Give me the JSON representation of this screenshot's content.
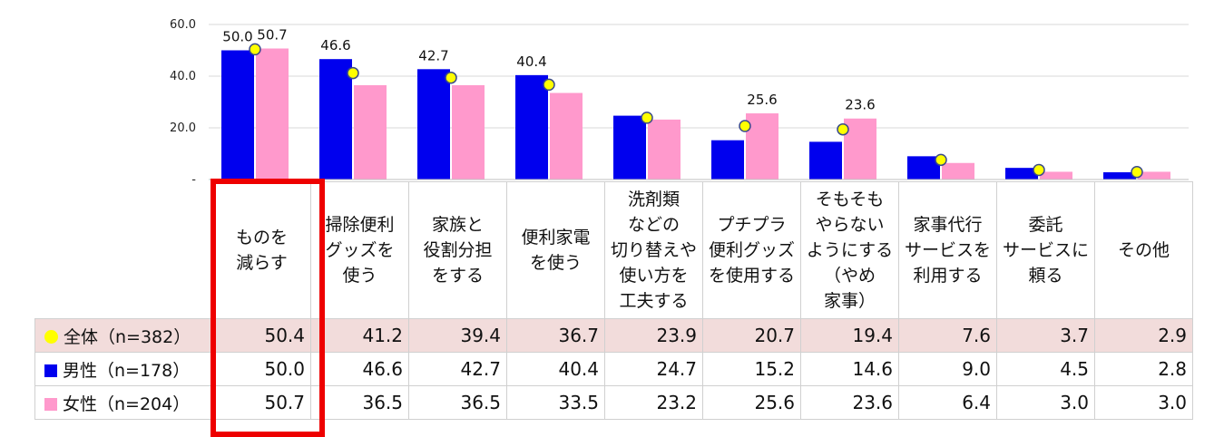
{
  "chart_data": {
    "type": "bar",
    "title": "",
    "xlabel": "",
    "ylabel": "",
    "ylim": [
      0,
      60
    ],
    "yticks": [
      {
        "value": 60,
        "label": "60.0"
      },
      {
        "value": 40,
        "label": "40.0"
      },
      {
        "value": 20,
        "label": "20.0"
      },
      {
        "value": 0,
        "label": "-"
      }
    ],
    "categories": [
      "ものを\n減らす",
      "掃除便利\nグッズを\n使う",
      "家族と\n役割分担\nをする",
      "便利家電\nを使う",
      "洗剤類\nなどの\n切り替えや\n使い方を\n工夫する",
      "プチプラ\n便利グッズ\nを使用する",
      "そもそも\nやらない\nようにする\n（やめ\n家事）",
      "家事代行\nサービスを\n利用する",
      "委託\nサービスに\n頼る",
      "その他"
    ],
    "series": [
      {
        "name": "全体（n=382）",
        "marker": "dot",
        "color": "#ffff00",
        "values": [
          50.4,
          41.2,
          39.4,
          36.7,
          23.9,
          20.7,
          19.4,
          7.6,
          3.7,
          2.9
        ]
      },
      {
        "name": "男性（n=178）",
        "marker": "bar",
        "color": "#0000ee",
        "values": [
          50.0,
          46.6,
          42.7,
          40.4,
          24.7,
          15.2,
          14.6,
          9.0,
          4.5,
          2.8
        ]
      },
      {
        "name": "女性（n=204）",
        "marker": "bar",
        "color": "#ff99cc",
        "values": [
          50.7,
          36.5,
          36.5,
          33.5,
          23.2,
          25.6,
          23.6,
          6.4,
          3.0,
          3.0
        ]
      }
    ],
    "data_labels": [
      {
        "category_index": 0,
        "series": "男性（n=178）",
        "text": "50.0"
      },
      {
        "category_index": 0,
        "series": "女性（n=204）",
        "text": "50.7"
      },
      {
        "category_index": 1,
        "series": "男性（n=178）",
        "text": "46.6"
      },
      {
        "category_index": 2,
        "series": "男性（n=178）",
        "text": "42.7"
      },
      {
        "category_index": 3,
        "series": "男性（n=178）",
        "text": "40.4"
      },
      {
        "category_index": 5,
        "series": "女性（n=204）",
        "text": "25.6"
      },
      {
        "category_index": 6,
        "series": "女性（n=204）",
        "text": "23.6"
      }
    ],
    "table_values": [
      [
        "50.4",
        "41.2",
        "39.4",
        "36.7",
        "23.9",
        "20.7",
        "19.4",
        "7.6",
        "3.7",
        "2.9"
      ],
      [
        "50.0",
        "46.6",
        "42.7",
        "40.4",
        "24.7",
        "15.2",
        "14.6",
        "9.0",
        "4.5",
        "2.8"
      ],
      [
        "50.7",
        "36.5",
        "36.5",
        "33.5",
        "23.2",
        "25.6",
        "23.6",
        "6.4",
        "3.0",
        "3.0"
      ]
    ],
    "highlighted_category_index": 0,
    "highlight_color": "#ee0000",
    "grid": true
  }
}
